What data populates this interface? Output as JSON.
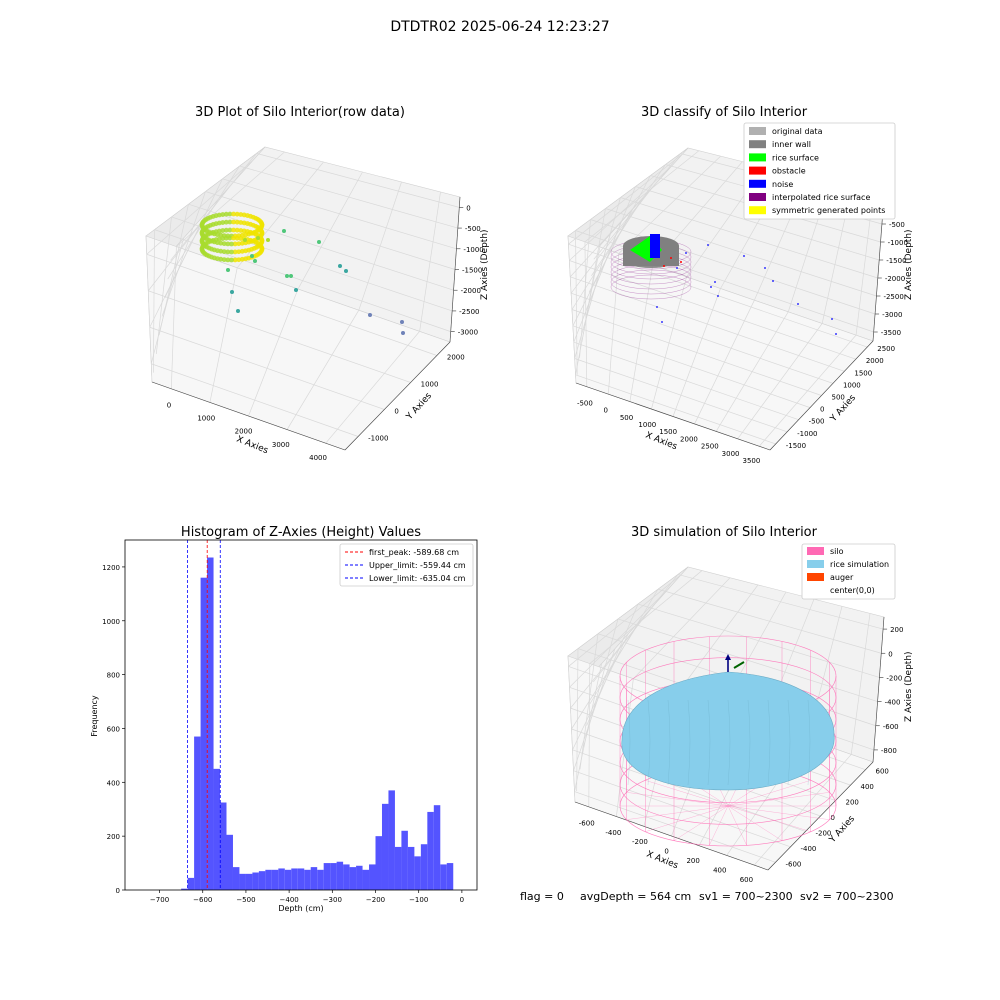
{
  "figure_title": "DTDTR02 2025-06-24 12:23:27",
  "status_line": {
    "flag": "flag = 0",
    "avg_depth": "avgDepth = 564 cm",
    "sv1": "sv1 = 700~2300",
    "sv2": "sv2 = 700~2300"
  },
  "colors": {
    "raw_gradient": [
      "#f0e400",
      "#a8dc2e",
      "#4fc77a",
      "#3aa7a0",
      "#6f82b8"
    ],
    "original_data": "#b0b0b0",
    "inner_wall": "#808080",
    "rice_surface": "#00ff00",
    "obstacle": "#ff0000",
    "noise": "#0000ff",
    "interpolated_rice_surface": "#800080",
    "symmetric_generated_points": "#ffff00",
    "histogram_bar": "#4b4bff",
    "first_peak_line": "#ff0000",
    "limit_lines": "#0000ff",
    "silo": "#ff69b4",
    "rice_simulation": "#87ceeb",
    "auger": "#ff4500"
  },
  "chart_data": [
    {
      "id": "raw",
      "type": "scatter",
      "title": "3D Plot of Silo Interior(row data)",
      "xlabel": "X Axies",
      "ylabel": "Y Axies",
      "zlabel": "Z Axies (Depth)",
      "x_ticks": [
        "0",
        "1000",
        "2000",
        "3000",
        "4000"
      ],
      "y_ticks": [
        "-1000",
        "0",
        "1000",
        "2000"
      ],
      "z_ticks": [
        "0",
        "-500",
        "-1000",
        "-1500",
        "-2000",
        "-2500",
        "-3000"
      ],
      "grid": true
    },
    {
      "id": "classify",
      "type": "scatter",
      "title": "3D classify of Silo Interior",
      "xlabel": "X Axies",
      "ylabel": "Y Axies",
      "zlabel": "Z Axies (Depth)",
      "x_ticks": [
        "-500",
        "0",
        "500",
        "1000",
        "1500",
        "2000",
        "2500",
        "3000",
        "3500"
      ],
      "y_ticks": [
        "-1500",
        "-1000",
        "-500",
        "0",
        "500",
        "1000",
        "1500",
        "2000",
        "2500"
      ],
      "z_ticks": [
        "0",
        "-500",
        "-1000",
        "-1500",
        "-2000",
        "-2500",
        "-3000",
        "-3500"
      ],
      "legend": [
        "original data",
        "inner wall",
        "rice surface",
        "obstacle",
        "noise",
        "interpolated rice surface",
        "symmetric generated points"
      ],
      "legend_position": "top-right",
      "grid": true
    },
    {
      "id": "histogram",
      "type": "bar",
      "title": "Histogram of Z-Axies (Height) Values",
      "xlabel": "Depth (cm)",
      "ylabel": "Frequency",
      "xlim": [
        -780,
        35
      ],
      "ylim": [
        0,
        1300
      ],
      "x_ticks": [
        -700,
        -600,
        -500,
        -400,
        -300,
        -200,
        -100,
        0
      ],
      "y_ticks": [
        0,
        200,
        400,
        600,
        800,
        1000,
        1200
      ],
      "bin_width": 15,
      "bin_starts": [
        -650,
        -635,
        -620,
        -605,
        -590,
        -575,
        -560,
        -545,
        -530,
        -515,
        -500,
        -485,
        -470,
        -455,
        -440,
        -425,
        -410,
        -395,
        -380,
        -365,
        -350,
        -335,
        -320,
        -305,
        -290,
        -275,
        -260,
        -245,
        -230,
        -215,
        -200,
        -185,
        -170,
        -155,
        -140,
        -125,
        -110,
        -95,
        -80,
        -65,
        -50,
        -35,
        -20,
        -5
      ],
      "values": [
        5,
        45,
        570,
        1160,
        1235,
        450,
        325,
        205,
        85,
        60,
        60,
        65,
        70,
        75,
        75,
        80,
        75,
        80,
        80,
        75,
        85,
        75,
        100,
        100,
        105,
        95,
        85,
        90,
        75,
        95,
        200,
        320,
        370,
        160,
        220,
        160,
        125,
        170,
        290,
        315,
        95,
        100,
        0,
        0
      ],
      "lines": [
        {
          "label": "first_peak: -589.68 cm",
          "x": -589.68,
          "style": "red-dashed"
        },
        {
          "label": "Upper_limit: -559.44 cm",
          "x": -559.44,
          "style": "blue-dashed"
        },
        {
          "label": "Lower_limit: -635.04 cm",
          "x": -635.04,
          "style": "blue-dashed"
        }
      ],
      "legend_position": "top-right",
      "grid": false
    },
    {
      "id": "simulation",
      "type": "scatter",
      "title": "3D simulation of Silo Interior",
      "xlabel": "X Axies",
      "ylabel": "Y Axies",
      "zlabel": "Z Axies (Depth)",
      "x_ticks": [
        "-600",
        "-400",
        "-200",
        "0",
        "200",
        "400",
        "600"
      ],
      "y_ticks": [
        "-600",
        "-400",
        "-200",
        "0",
        "200",
        "400",
        "600"
      ],
      "z_ticks": [
        "200",
        "0",
        "-200",
        "-400",
        "-600",
        "-800"
      ],
      "legend": [
        "silo",
        "rice simulation",
        "auger",
        "center(0,0)"
      ],
      "legend_position": "top-right",
      "grid": true
    }
  ]
}
